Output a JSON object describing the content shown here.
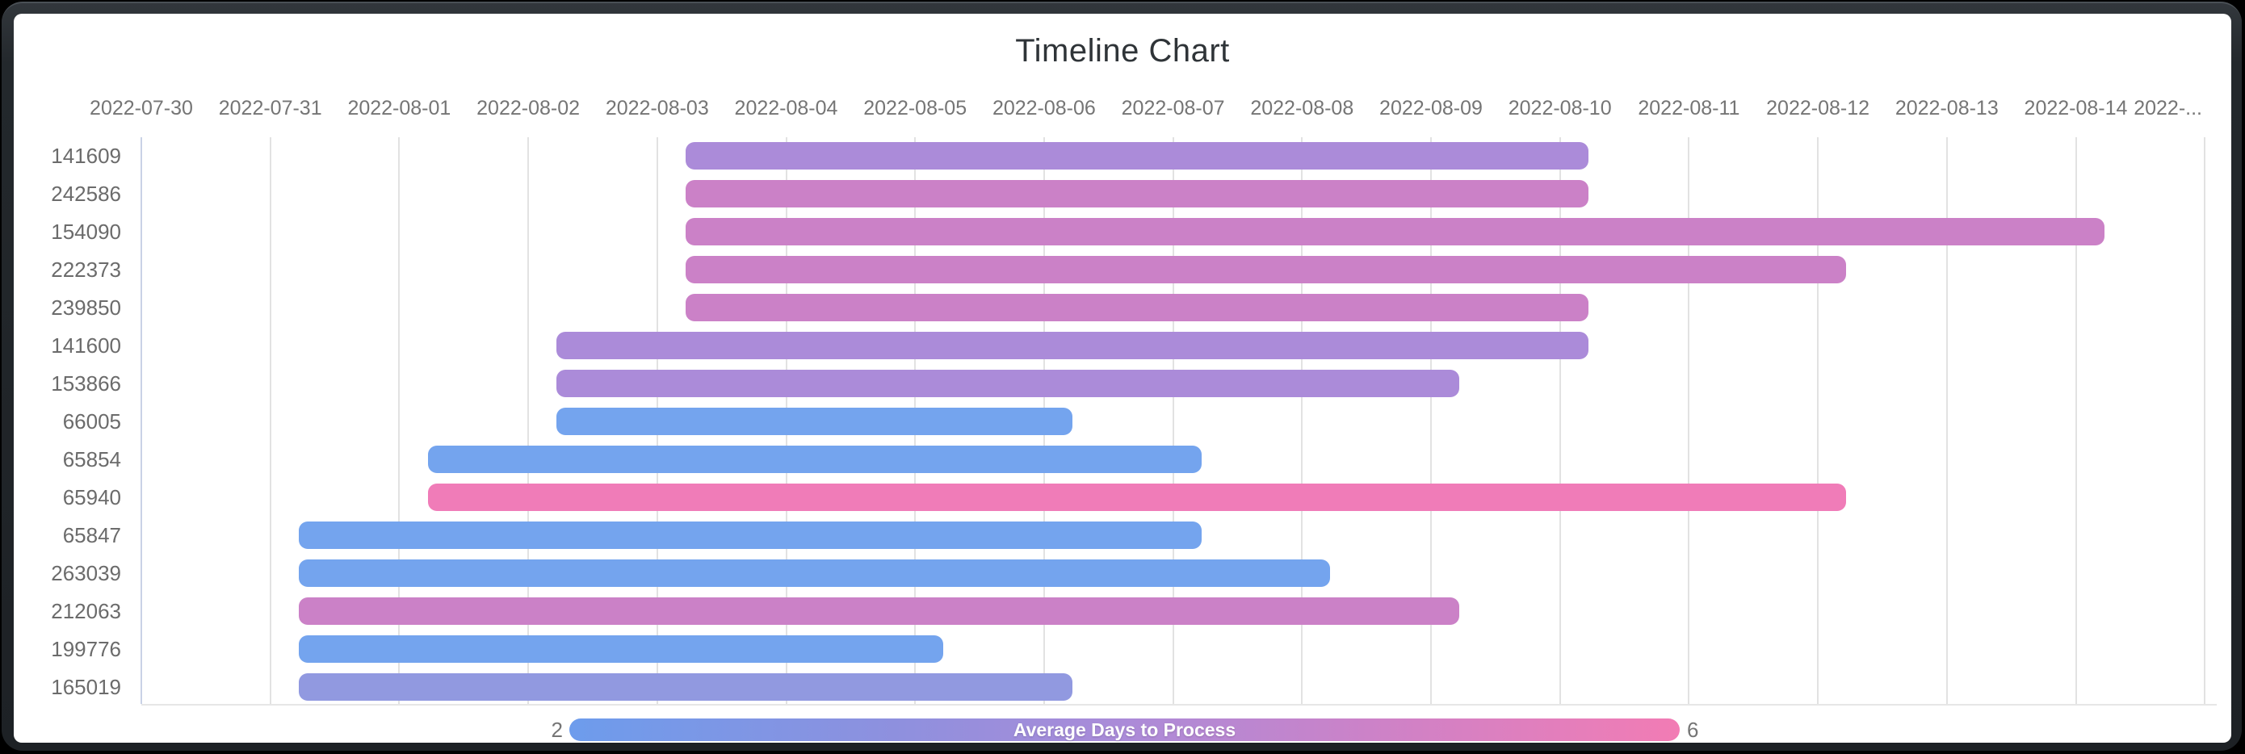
{
  "title": "Timeline Chart",
  "chart_data": {
    "type": "bar",
    "variant": "timeline-gantt",
    "title": "Timeline Chart",
    "grid": true,
    "x_axis": {
      "start_date": "2022-07-30",
      "tick_interval_days": 1,
      "tick_labels": [
        "2022-07-30",
        "2022-07-31",
        "2022-08-01",
        "2022-08-02",
        "2022-08-03",
        "2022-08-04",
        "2022-08-05",
        "2022-08-06",
        "2022-08-07",
        "2022-08-08",
        "2022-08-09",
        "2022-08-10",
        "2022-08-11",
        "2022-08-12",
        "2022-08-13",
        "2022-08-14",
        "2022-..."
      ],
      "last_tick_clipped": true
    },
    "y_axis": {
      "categories": [
        "141609",
        "242586",
        "154090",
        "222373",
        "239850",
        "141600",
        "153866",
        "66005",
        "65854",
        "65940",
        "65847",
        "263039",
        "212063",
        "199776",
        "165019"
      ]
    },
    "rows": [
      {
        "id": "141609",
        "start": "2022-08-03",
        "end": "2022-08-10",
        "duration_days": 7,
        "color": "#ab8bd9"
      },
      {
        "id": "242586",
        "start": "2022-08-03",
        "end": "2022-08-10",
        "duration_days": 7,
        "color": "#cb81c7"
      },
      {
        "id": "154090",
        "start": "2022-08-03",
        "end": "2022-08-14",
        "duration_days": 11,
        "color": "#cb81c7"
      },
      {
        "id": "222373",
        "start": "2022-08-03",
        "end": "2022-08-12",
        "duration_days": 9,
        "color": "#cb81c7"
      },
      {
        "id": "239850",
        "start": "2022-08-03",
        "end": "2022-08-10",
        "duration_days": 7,
        "color": "#cb81c7"
      },
      {
        "id": "141600",
        "start": "2022-08-02",
        "end": "2022-08-10",
        "duration_days": 8,
        "color": "#ab8bd9"
      },
      {
        "id": "153866",
        "start": "2022-08-02",
        "end": "2022-08-09",
        "duration_days": 7,
        "color": "#ab8bd9"
      },
      {
        "id": "66005",
        "start": "2022-08-02",
        "end": "2022-08-06",
        "duration_days": 4,
        "color": "#74a4ee"
      },
      {
        "id": "65854",
        "start": "2022-08-01",
        "end": "2022-08-07",
        "duration_days": 6,
        "color": "#74a4ee"
      },
      {
        "id": "65940",
        "start": "2022-08-01",
        "end": "2022-08-12",
        "duration_days": 11,
        "color": "#f07cb8"
      },
      {
        "id": "65847",
        "start": "2022-07-31",
        "end": "2022-08-07",
        "duration_days": 7,
        "color": "#74a4ee"
      },
      {
        "id": "263039",
        "start": "2022-07-31",
        "end": "2022-08-08",
        "duration_days": 8,
        "color": "#74a4ee"
      },
      {
        "id": "212063",
        "start": "2022-07-31",
        "end": "2022-08-09",
        "duration_days": 9,
        "color": "#cb81c7"
      },
      {
        "id": "199776",
        "start": "2022-07-31",
        "end": "2022-08-05",
        "duration_days": 5,
        "color": "#74a4ee"
      },
      {
        "id": "165019",
        "start": "2022-07-31",
        "end": "2022-08-06",
        "duration_days": 6,
        "color": "#9199e0"
      }
    ],
    "legend": {
      "label": "Average Days to Process",
      "min": "2",
      "max": "6",
      "position": "bottom",
      "gradient": [
        "#6d9cec",
        "#ab8bd8",
        "#f27cb4"
      ]
    },
    "colors": {
      "bar_low_blue": "#74a4ee",
      "bar_blue_purple": "#9199e0",
      "bar_purple": "#ab8bd9",
      "bar_orchid": "#cb81c7",
      "bar_high_pink": "#f07cb8",
      "gridline": "#e2e2e2",
      "first_gridline": "#c9d2e6",
      "axis_text": "#757575",
      "row_label_text": "#6b6b6b",
      "title_text": "#2f3438",
      "frame": "#23282c",
      "background": "#ffffff"
    }
  }
}
